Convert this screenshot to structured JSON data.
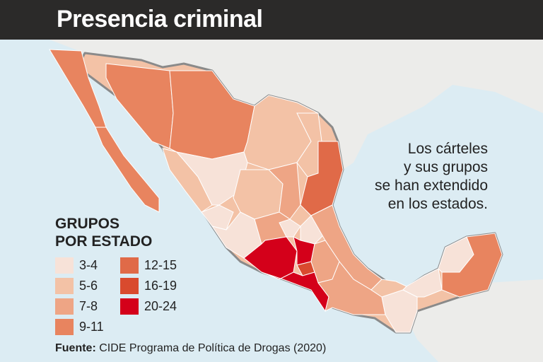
{
  "title": "Presencia criminal",
  "note_lines": [
    "Los cárteles",
    "y sus grupos",
    "se han extendido",
    "en los estados."
  ],
  "legend": {
    "title_lines": [
      "GRUPOS",
      "POR ESTADO"
    ],
    "items": [
      {
        "label": "3-4",
        "color": "#f7e2d8"
      },
      {
        "label": "5-6",
        "color": "#f3c2a6"
      },
      {
        "label": "7-8",
        "color": "#eea585"
      },
      {
        "label": "9-11",
        "color": "#e8845f"
      },
      {
        "label": "12-15",
        "color": "#e06a48"
      },
      {
        "label": "16-19",
        "color": "#d94a2e"
      },
      {
        "label": "20-24",
        "color": "#d4001a"
      }
    ]
  },
  "source": {
    "bold": "Fuente:",
    "text": " CIDE Programa de Política de Drogas (2020)"
  },
  "colors": {
    "title_bar": "#2b2a29",
    "sea": "#dcecf3",
    "land": "#ececea",
    "border": "#8a8a8a"
  }
}
